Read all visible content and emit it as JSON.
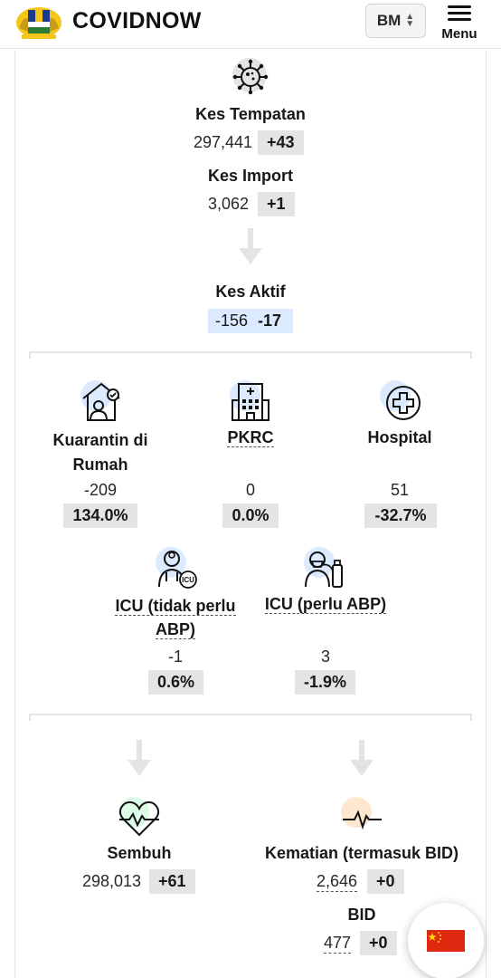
{
  "header": {
    "brand": "COVIDNOW",
    "language": "BM",
    "menu_label": "Menu"
  },
  "flow": {
    "local": {
      "label": "Kes Tempatan",
      "value": "297,441",
      "change": "+43"
    },
    "import": {
      "label": "Kes Import",
      "value": "3,062",
      "change": "+1"
    },
    "active": {
      "label": "Kes Aktif",
      "value": "-156",
      "change": "-17"
    }
  },
  "facilities": {
    "home": {
      "label_line1": "Kuarantin di",
      "label_line2": "Rumah",
      "value": "-209",
      "change": "134.0%"
    },
    "pkrc": {
      "label": "PKRC",
      "value": "0",
      "change": "0.0%"
    },
    "hospital": {
      "label": "Hospital",
      "value": "51",
      "change": "-32.7%"
    },
    "icu_no_vent": {
      "label_line1": "ICU (tidak perlu",
      "label_line2": "ABP)",
      "value": "-1",
      "change": "0.6%"
    },
    "icu_vent": {
      "label": "ICU (perlu ABP)",
      "value": "3",
      "change": "-1.9%"
    }
  },
  "outcomes": {
    "recovered": {
      "label": "Sembuh",
      "value": "298,013",
      "change": "+61"
    },
    "deaths": {
      "label": "Kematian (termasuk BID)",
      "value": "2,646",
      "change": "+0"
    },
    "bid": {
      "label": "BID",
      "value": "477",
      "change": "+0"
    }
  },
  "colors": {
    "chip_gray": "#e4e4e7",
    "chip_blue": "#dbeafe",
    "icon_bg_blue": "#dbeafe",
    "icon_bg_green": "#dcfce7",
    "icon_bg_orange": "#fde8cf",
    "flag_red": "#de2910",
    "flag_yellow": "#ffde00"
  },
  "icons": {
    "virus": "virus-icon",
    "arrow": "arrow-down-icon",
    "home": "home-quarantine-icon",
    "pkrc": "building-icon",
    "hospital": "medical-cross-icon",
    "icu_no_vent": "doctor-icu-icon",
    "icu_vent": "ventilator-patient-icon",
    "recovered": "heart-pulse-icon",
    "deaths": "pulse-line-icon",
    "language_flag": "china-flag-icon"
  }
}
